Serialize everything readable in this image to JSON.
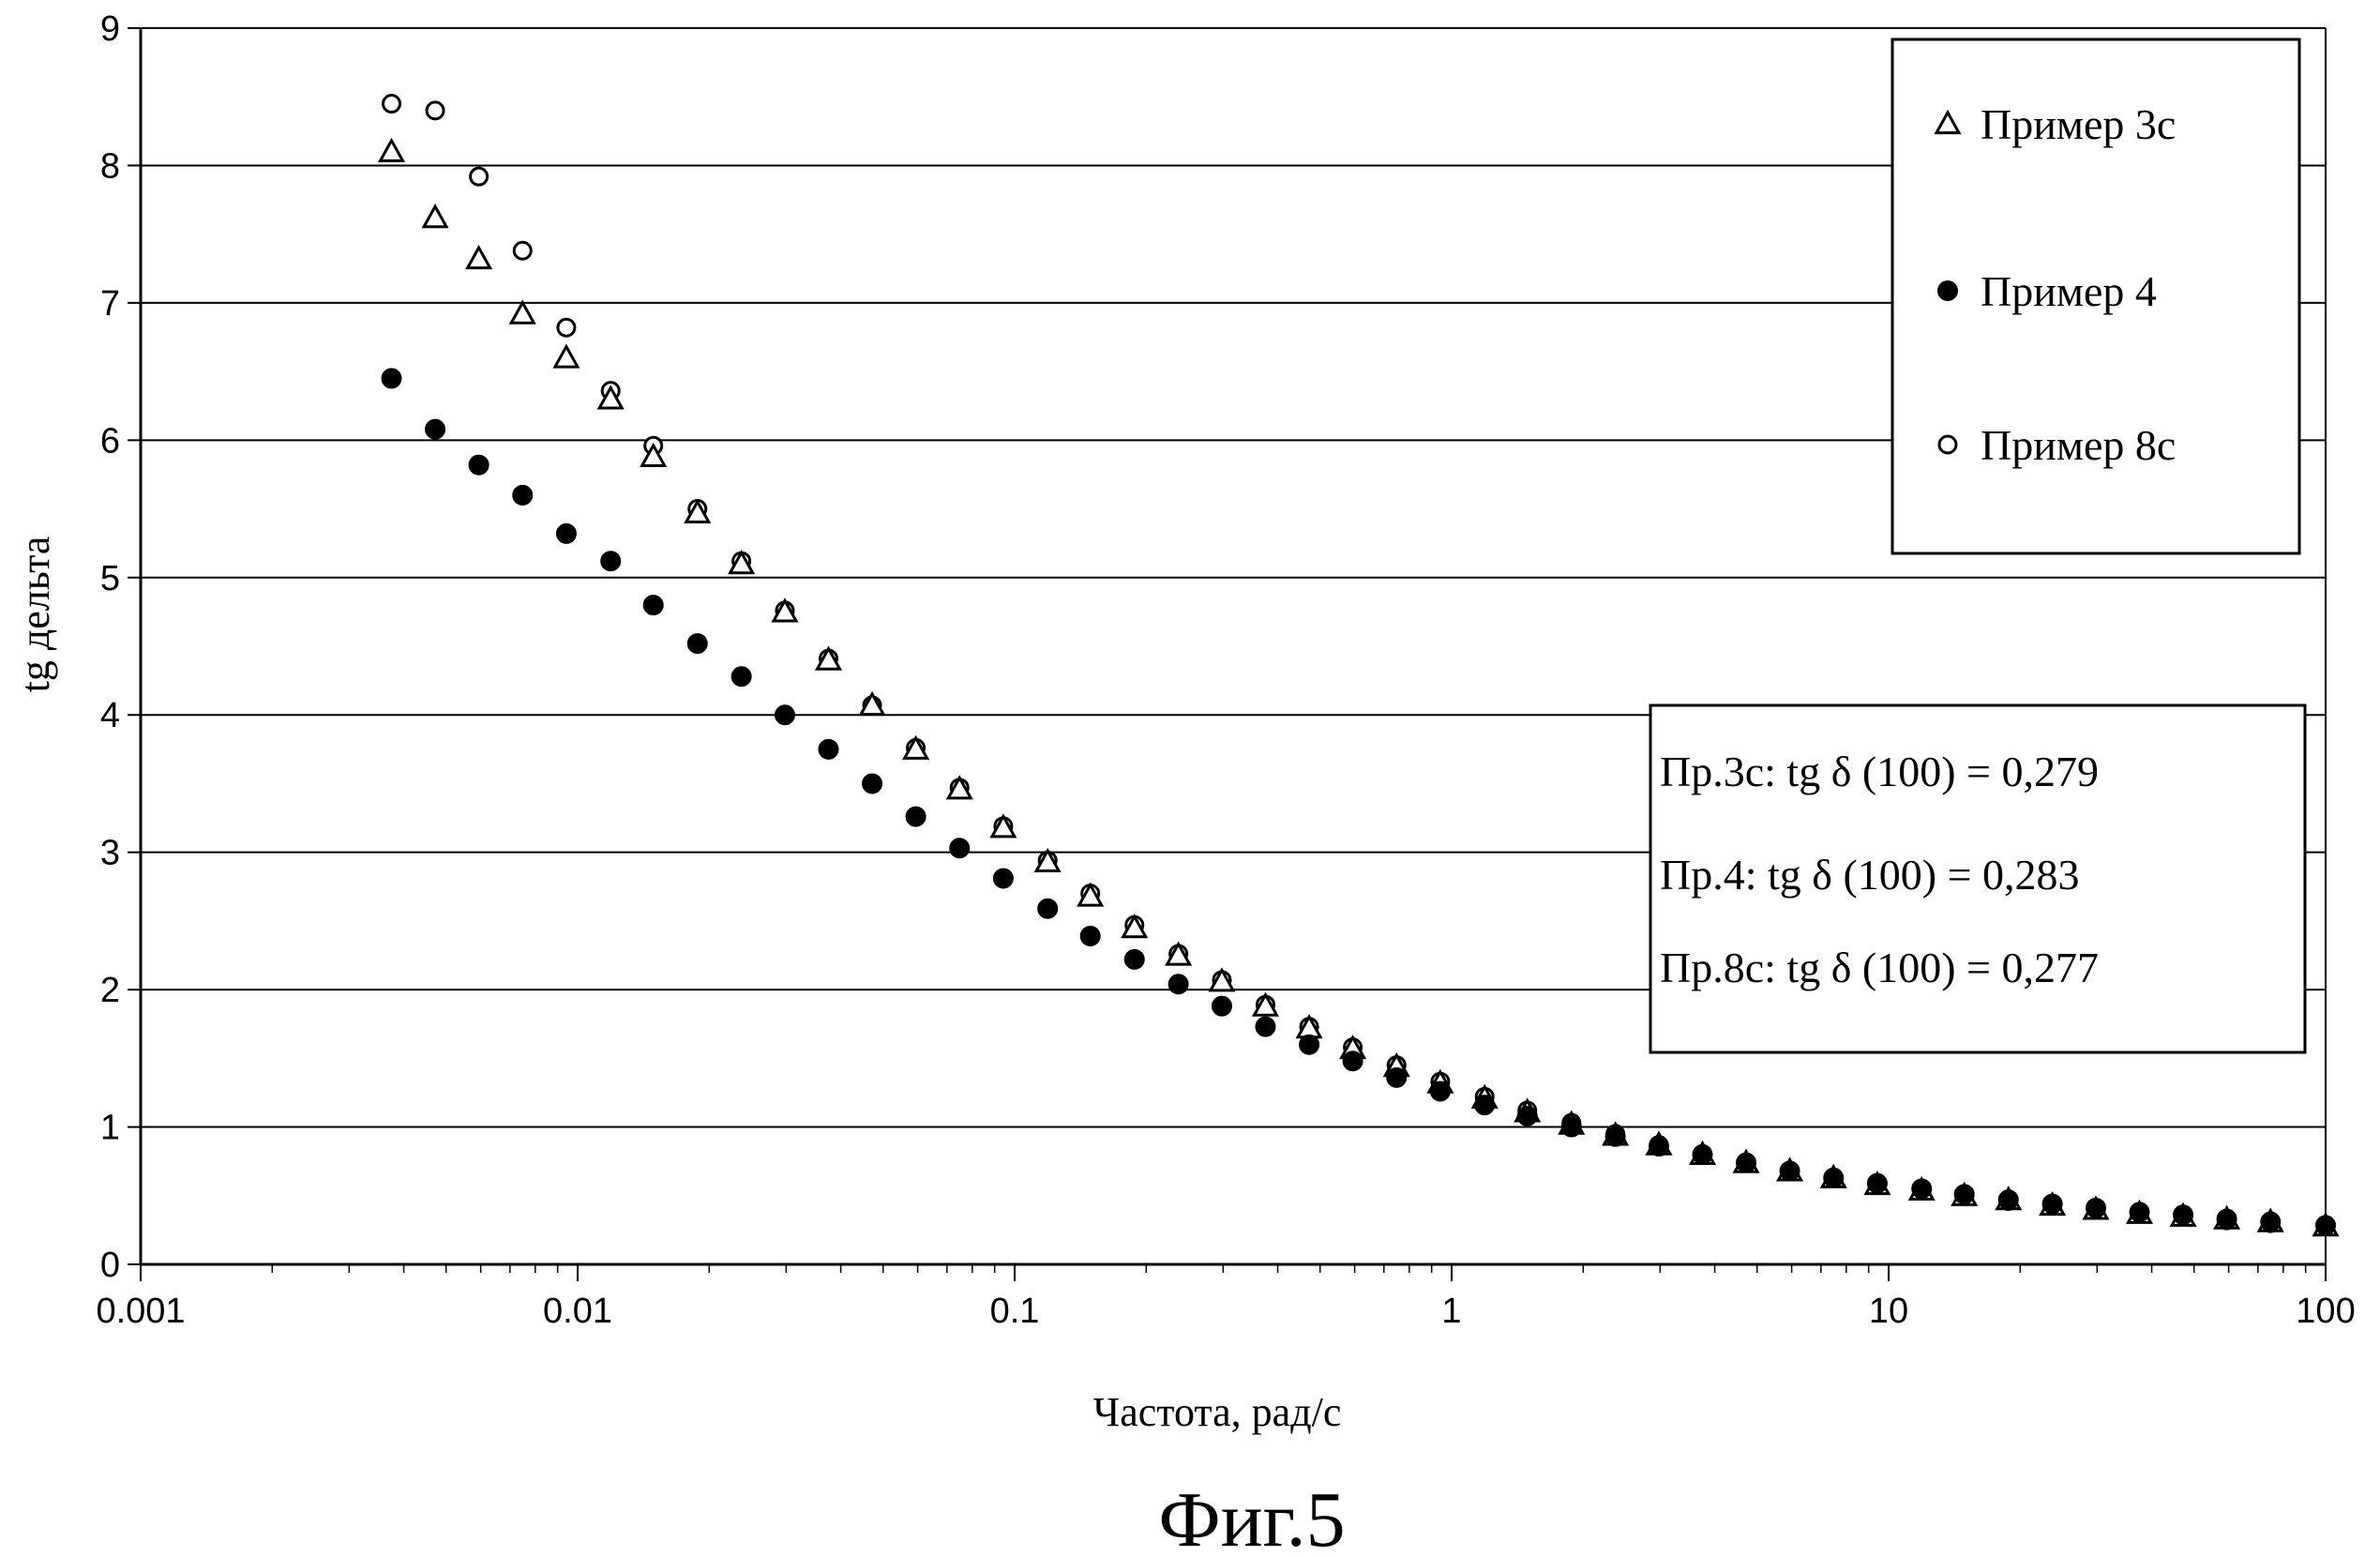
{
  "chart_data": {
    "type": "scatter",
    "xscale": "log",
    "xlim": [
      0.001,
      100
    ],
    "ylim": [
      0,
      9
    ],
    "x_ticks": [
      "0.001",
      "0.01",
      "0.1",
      "1",
      "10",
      "100"
    ],
    "y_ticks": [
      "0",
      "1",
      "2",
      "3",
      "4",
      "5",
      "6",
      "7",
      "8",
      "9"
    ],
    "xlabel": "Частота, рад/с",
    "ylabel": "tg дельта",
    "grid": "horizontal",
    "legend_position": "top-right",
    "caption": "Фиг.5",
    "annotations": [
      "Пр.3с: tg δ (100) = 0,279",
      "Пр.4: tg δ (100) = 0,283",
      "Пр.8с: tg δ (100) = 0,277"
    ],
    "x": [
      0.00375,
      0.00472,
      0.00594,
      0.00748,
      0.00942,
      0.0119,
      0.0149,
      0.0188,
      0.0237,
      0.0298,
      0.0375,
      0.0472,
      0.0594,
      0.0748,
      0.0942,
      0.119,
      0.149,
      0.188,
      0.237,
      0.298,
      0.375,
      0.472,
      0.594,
      0.748,
      0.942,
      1.19,
      1.49,
      1.88,
      2.37,
      2.98,
      3.75,
      4.72,
      5.94,
      7.48,
      9.42,
      11.9,
      14.9,
      18.8,
      23.7,
      29.8,
      37.5,
      47.2,
      59.4,
      74.8,
      100
    ],
    "series": [
      {
        "name": "Пример 3с",
        "marker": "triangle-open",
        "values": [
          8.1,
          7.62,
          7.32,
          6.92,
          6.6,
          6.3,
          5.88,
          5.47,
          5.1,
          4.75,
          4.4,
          4.07,
          3.75,
          3.46,
          3.18,
          2.93,
          2.68,
          2.45,
          2.25,
          2.06,
          1.88,
          1.72,
          1.57,
          1.44,
          1.32,
          1.21,
          1.11,
          1.02,
          0.94,
          0.87,
          0.8,
          0.74,
          0.68,
          0.63,
          0.58,
          0.54,
          0.5,
          0.47,
          0.43,
          0.4,
          0.37,
          0.35,
          0.33,
          0.31,
          0.279
        ]
      },
      {
        "name": "Пример 4",
        "marker": "circle-filled",
        "values": [
          6.45,
          6.08,
          5.82,
          5.6,
          5.32,
          5.12,
          4.8,
          4.52,
          4.28,
          4.0,
          3.75,
          3.5,
          3.26,
          3.03,
          2.81,
          2.59,
          2.39,
          2.22,
          2.04,
          1.88,
          1.73,
          1.6,
          1.48,
          1.36,
          1.26,
          1.16,
          1.08,
          1.0,
          0.93,
          0.86,
          0.8,
          0.74,
          0.68,
          0.63,
          0.59,
          0.55,
          0.51,
          0.47,
          0.44,
          0.41,
          0.38,
          0.36,
          0.33,
          0.31,
          0.283
        ]
      },
      {
        "name": "Пример 8с",
        "marker": "circle-open",
        "values": [
          8.45,
          8.4,
          7.92,
          7.38,
          6.82,
          6.36,
          5.96,
          5.5,
          5.12,
          4.76,
          4.41,
          4.07,
          3.76,
          3.47,
          3.19,
          2.94,
          2.7,
          2.47,
          2.26,
          2.07,
          1.89,
          1.73,
          1.58,
          1.45,
          1.33,
          1.22,
          1.12,
          1.03,
          0.95,
          0.87,
          0.8,
          0.74,
          0.68,
          0.63,
          0.58,
          0.54,
          0.5,
          0.46,
          0.43,
          0.4,
          0.37,
          0.35,
          0.32,
          0.3,
          0.277
        ]
      }
    ]
  }
}
